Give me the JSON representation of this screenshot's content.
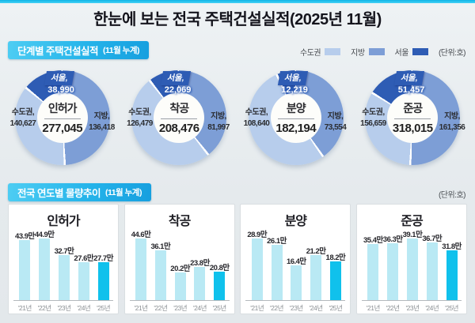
{
  "title": "한눈에 보는 전국 주택건설실적(2025년 11월)",
  "palette": {
    "accent_cyan": "#14bdea",
    "sudogwon": "#b7cdec",
    "jibang": "#7d9ed6",
    "seoul": "#2e5cb4",
    "bar": "#b9e9f4",
    "bar_highlight": "#10c1ec"
  },
  "section1": {
    "header": "단계별 주택건설실적",
    "header_sub": "(11월 누계)",
    "unit": "(단위:호)",
    "legend": [
      {
        "label": "수도권",
        "color_key": "sudogwon"
      },
      {
        "label": "지방",
        "color_key": "jibang"
      },
      {
        "label": "서울",
        "color_key": "seoul"
      }
    ]
  },
  "section2": {
    "header": "전국 연도별 물량추이",
    "header_sub": "(11월 누계)",
    "unit": "(단위:호)"
  },
  "chart_data": [
    {
      "type": "donut",
      "title": "인허가",
      "total": 277045,
      "total_display": "277,045",
      "note": "수도권 includes 서울; ring arcs = 지방, 수도권-서울, 서울",
      "segments": [
        {
          "name": "서울",
          "label": "서울,",
          "value": 38990,
          "display": "38,990",
          "color_key": "seoul"
        },
        {
          "name": "수도권",
          "label": "수도권,",
          "value": 140627,
          "display": "140,627",
          "color_key": "sudogwon"
        },
        {
          "name": "지방",
          "label": "지방,",
          "value": 136418,
          "display": "136,418",
          "color_key": "jibang"
        }
      ]
    },
    {
      "type": "donut",
      "title": "착공",
      "total": 208476,
      "total_display": "208,476",
      "segments": [
        {
          "name": "서울",
          "label": "서울,",
          "value": 22069,
          "display": "22,069",
          "color_key": "seoul"
        },
        {
          "name": "수도권",
          "label": "수도권,",
          "value": 126479,
          "display": "126,479",
          "color_key": "sudogwon"
        },
        {
          "name": "지방",
          "label": "지방,",
          "value": 81997,
          "display": "81,997",
          "color_key": "jibang"
        }
      ]
    },
    {
      "type": "donut",
      "title": "분양",
      "total": 182194,
      "total_display": "182,194",
      "segments": [
        {
          "name": "서울",
          "label": "서울,",
          "value": 12219,
          "display": "12,219",
          "color_key": "seoul"
        },
        {
          "name": "수도권",
          "label": "수도권,",
          "value": 108640,
          "display": "108,640",
          "color_key": "sudogwon"
        },
        {
          "name": "지방",
          "label": "지방,",
          "value": 73554,
          "display": "73,554",
          "color_key": "jibang"
        }
      ]
    },
    {
      "type": "donut",
      "title": "준공",
      "total": 318015,
      "total_display": "318,015",
      "segments": [
        {
          "name": "서울",
          "label": "서울,",
          "value": 51457,
          "display": "51,457",
          "color_key": "seoul"
        },
        {
          "name": "수도권",
          "label": "수도권,",
          "value": 156659,
          "display": "156,659",
          "color_key": "sudogwon"
        },
        {
          "name": "지방",
          "label": "지방,",
          "value": 161356,
          "display": "161,356",
          "color_key": "jibang"
        }
      ]
    },
    {
      "type": "bar",
      "title": "인허가",
      "categories": [
        "'21년",
        "'22년",
        "'23년",
        "'24년",
        "'25년"
      ],
      "values": [
        43.9,
        44.9,
        32.7,
        27.6,
        27.7
      ],
      "value_labels": [
        "43.9만",
        "44.9만",
        "32.7만",
        "27.6만",
        "27.7만"
      ],
      "unit": "만",
      "highlight_index": 4,
      "ylim": [
        0,
        44.9
      ]
    },
    {
      "type": "bar",
      "title": "착공",
      "categories": [
        "'21년",
        "'22년",
        "'23년",
        "'24년",
        "'25년"
      ],
      "values": [
        44.6,
        36.1,
        20.2,
        23.8,
        20.8
      ],
      "value_labels": [
        "44.6만",
        "36.1만",
        "20.2만",
        "23.8만",
        "20.8만"
      ],
      "unit": "만",
      "highlight_index": 4,
      "ylim": [
        0,
        44.6
      ]
    },
    {
      "type": "bar",
      "title": "분양",
      "categories": [
        "'21년",
        "'22년",
        "'23년",
        "'24년",
        "'25년"
      ],
      "values": [
        28.9,
        26.1,
        16.4,
        21.2,
        18.2
      ],
      "value_labels": [
        "28.9만",
        "26.1만",
        "16.4만",
        "21.2만",
        "18.2만"
      ],
      "unit": "만",
      "highlight_index": 4,
      "ylim": [
        0,
        28.9
      ]
    },
    {
      "type": "bar",
      "title": "준공",
      "categories": [
        "'21년",
        "'22년",
        "'23년",
        "'24년",
        "'25년"
      ],
      "values": [
        35.4,
        36.3,
        39.1,
        36.7,
        31.8
      ],
      "value_labels": [
        "35.4만",
        "36.3만",
        "39.1만",
        "36.7만",
        "31.8만"
      ],
      "unit": "만",
      "highlight_index": 4,
      "ylim": [
        0,
        39.1
      ]
    }
  ]
}
